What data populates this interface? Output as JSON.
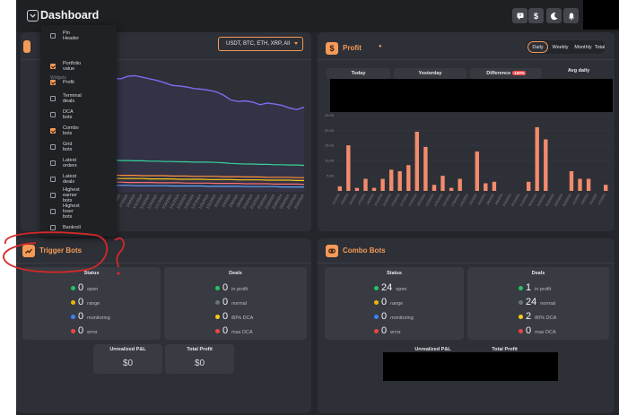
{
  "header": {
    "title": "Dashboard"
  },
  "header_buttons": [
    {
      "name": "feedback-icon"
    },
    {
      "name": "dollar-icon",
      "glyph": "$"
    },
    {
      "name": "moon-icon"
    },
    {
      "name": "bell-icon"
    }
  ],
  "portfolio": {
    "filter_value": "USDT, BTC, ETH, XRP, All",
    "x_labels": [
      "1/1/2024",
      "1/3/2024",
      "1/5/2024",
      "1/7/2024",
      "1/9/2024",
      "1/11/2024",
      "1/13/2024",
      "1/15/2024",
      "1/17/2024",
      "1/19/2024",
      "1/21/2024",
      "1/23/2024",
      "1/25/2024",
      "1/27/2024",
      "1/29/2024",
      "1/31/2024",
      "2/2/2024",
      "2/4/2024",
      "2/6/2024",
      "2/8/2024",
      "2/10/2024",
      "2/12/2024",
      "2/14/2024",
      "2/16/2024",
      "2/18/2024",
      "2/20/2024",
      "2/22/2024",
      "2/24/2024"
    ]
  },
  "profit": {
    "title": "Profit",
    "info_glyph": "●",
    "tabs": [
      "Daily",
      "Weekly",
      "Monthly",
      "Total"
    ],
    "active_tab": "Daily",
    "stats": [
      "Today",
      "Yesterday",
      "Difference",
      "Avg daily"
    ],
    "difference_badge": "-100%",
    "y_ticks": [
      "25.00",
      "20.00",
      "15.00",
      "10.00",
      "5.00"
    ]
  },
  "dropdown": {
    "heading": "Widgets",
    "items": [
      {
        "label": "Pin Header",
        "checked": false
      },
      {
        "label": "Portfolio value",
        "checked": true
      },
      {
        "label": "Profit",
        "checked": true
      },
      {
        "label": "Terminal deals",
        "checked": false
      },
      {
        "label": "DCA bots",
        "checked": false
      },
      {
        "label": "Combo bots",
        "checked": true
      },
      {
        "label": "Grid bots",
        "checked": false
      },
      {
        "label": "Latest orders",
        "checked": false
      },
      {
        "label": "Latest deals",
        "checked": false
      },
      {
        "label": "Highest earner bots",
        "checked": false
      },
      {
        "label": "Highest loser bots",
        "checked": false
      },
      {
        "label": "Bankroll",
        "checked": false
      }
    ]
  },
  "trigger_bots": {
    "title": "Trigger Bots",
    "status_label": "Status",
    "deals_label": "Deals",
    "status": [
      {
        "value": "0",
        "label": "open",
        "color": "#22c55e"
      },
      {
        "value": "0",
        "label": "range",
        "color": "#eab308"
      },
      {
        "value": "0",
        "label": "monitoring",
        "color": "#3b82f6"
      },
      {
        "value": "0",
        "label": "error",
        "color": "#ef4444"
      }
    ],
    "deals": [
      {
        "value": "0",
        "label": "in profit",
        "color": "#22c55e"
      },
      {
        "value": "0",
        "label": "normal",
        "color": "#6b7280"
      },
      {
        "value": "0",
        "label": "80% DCA",
        "color": "#facc15"
      },
      {
        "value": "0",
        "label": "max DCA",
        "color": "#ef4444"
      }
    ],
    "unrealized_label": "Unrealized P&L",
    "unrealized_value": "$0",
    "total_profit_label": "Total Profit",
    "total_profit_value": "$0"
  },
  "combo_bots": {
    "title": "Combo Bots",
    "status_label": "Status",
    "deals_label": "Deals",
    "status": [
      {
        "value": "24",
        "label": "open",
        "color": "#22c55e"
      },
      {
        "value": "0",
        "label": "range",
        "color": "#eab308"
      },
      {
        "value": "0",
        "label": "monitoring",
        "color": "#3b82f6"
      },
      {
        "value": "0",
        "label": "error",
        "color": "#ef4444"
      }
    ],
    "deals": [
      {
        "value": "1",
        "label": "in profit",
        "color": "#22c55e"
      },
      {
        "value": "24",
        "label": "normal",
        "color": "#6b7280"
      },
      {
        "value": "2",
        "label": "80% DCA",
        "color": "#facc15"
      },
      {
        "value": "0",
        "label": "max DCA",
        "color": "#ef4444"
      }
    ],
    "unrealized_label": "Unrealized P&L",
    "total_profit_label": "Total Profit"
  },
  "chart_data": [
    {
      "type": "line",
      "series": [
        {
          "color": "#7c6cf0",
          "values": [
            3.55,
            3.52,
            3.5,
            3.58,
            3.6,
            3.55,
            3.5,
            3.45,
            3.38,
            3.3,
            3.28,
            3.25,
            3.2,
            3.18,
            3.15,
            3.1,
            3.0,
            2.85,
            2.8,
            2.82,
            2.78,
            2.7,
            2.75,
            2.72,
            2.68,
            2.6,
            2.55,
            2.62
          ]
        },
        {
          "color": "#34d399",
          "values": [
            1.0,
            0.98,
            0.97,
            0.97,
            0.96,
            0.96,
            0.95,
            0.95,
            0.94,
            0.94,
            0.93,
            0.93,
            0.92,
            0.92,
            0.92,
            0.91,
            0.9,
            0.88,
            0.87,
            0.86,
            0.86,
            0.85,
            0.85,
            0.84,
            0.84,
            0.83,
            0.83,
            0.82
          ]
        },
        {
          "color": "#fb923c",
          "values": [
            0.52,
            0.52,
            0.51,
            0.51,
            0.51,
            0.5,
            0.5,
            0.5,
            0.5,
            0.49,
            0.49,
            0.49,
            0.48,
            0.48,
            0.48,
            0.48,
            0.47,
            0.47,
            0.47,
            0.46,
            0.46,
            0.46,
            0.45,
            0.45,
            0.45,
            0.45,
            0.44,
            0.44
          ]
        },
        {
          "color": "#facc15",
          "values": [
            0.42,
            0.42,
            0.41,
            0.41,
            0.41,
            0.41,
            0.4,
            0.4,
            0.4,
            0.4,
            0.39,
            0.39,
            0.39,
            0.39,
            0.38,
            0.38,
            0.38,
            0.38,
            0.37,
            0.37,
            0.37,
            0.37,
            0.36,
            0.36,
            0.36,
            0.36,
            0.35,
            0.35
          ]
        },
        {
          "color": "#f87171",
          "values": [
            0.3,
            0.3,
            0.3,
            0.29,
            0.29,
            0.29,
            0.29,
            0.28,
            0.28,
            0.28,
            0.28,
            0.27,
            0.27,
            0.27,
            0.27,
            0.26,
            0.26,
            0.26,
            0.26,
            0.25,
            0.25,
            0.25,
            0.25,
            0.24,
            0.24,
            0.24,
            0.24,
            0.23
          ]
        },
        {
          "color": "#60a5fa",
          "values": [
            0.2,
            0.2,
            0.2,
            0.2,
            0.19,
            0.19,
            0.19,
            0.19,
            0.19,
            0.18,
            0.18,
            0.18,
            0.18,
            0.18,
            0.17,
            0.17,
            0.17,
            0.17,
            0.17,
            0.16,
            0.16,
            0.16,
            0.16,
            0.16,
            0.15,
            0.15,
            0.15,
            0.15
          ]
        }
      ]
    },
    {
      "type": "bar",
      "ylim": [
        0,
        26
      ],
      "values": [
        1.5,
        15,
        1,
        4,
        1,
        4,
        7,
        6.5,
        8.5,
        19.5,
        14.5,
        2,
        5,
        1,
        4,
        0,
        13,
        2.5,
        3,
        0,
        0,
        0,
        3,
        21,
        17,
        0,
        0,
        6.5,
        4,
        4,
        0,
        2
      ]
    }
  ]
}
